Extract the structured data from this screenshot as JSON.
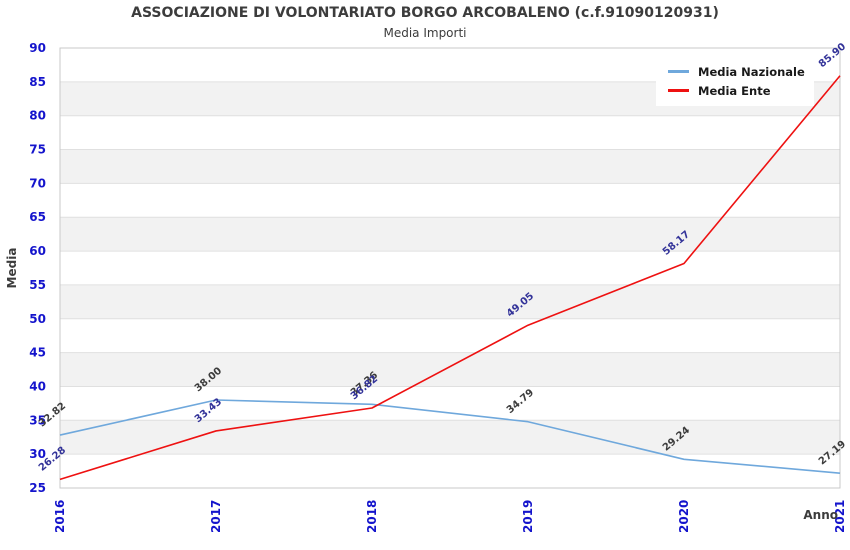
{
  "title": "ASSOCIAZIONE DI VOLONTARIATO BORGO ARCOBALENO (c.f.91090120931)",
  "subtitle": "Media Importi",
  "legend": {
    "items": [
      {
        "label": "Media Nazionale"
      },
      {
        "label": "Media Ente"
      }
    ]
  },
  "chart_data": {
    "type": "line",
    "title": "ASSOCIAZIONE DI VOLONTARIATO BORGO ARCOBALENO (c.f.91090120931)",
    "subtitle": "Media Importi",
    "xlabel": "Anno",
    "ylabel": "Media",
    "x": [
      "2016",
      "2017",
      "2018",
      "2019",
      "2020",
      "2021"
    ],
    "series": [
      {
        "name": "Media Nazionale",
        "color": "#6fa8dc",
        "label_color": "#3c3c3c",
        "values": [
          32.82,
          38.0,
          37.36,
          34.79,
          29.24,
          27.19
        ]
      },
      {
        "name": "Media Ente",
        "color": "#ee1111",
        "label_color": "#333399",
        "values": [
          26.28,
          33.43,
          36.82,
          49.05,
          58.17,
          85.9
        ]
      }
    ],
    "ylim": [
      25,
      90
    ],
    "ytick_step": 5,
    "tick_color": "#1414cc",
    "axis_text_color": "#3c3c3c",
    "band_colors": [
      "#ffffff",
      "#f2f2f2"
    ],
    "grid_color": "#e0e0e0",
    "border_color": "#c9c9c9",
    "grid": true,
    "legend_position": "upper-right",
    "value_label_rotation": -40,
    "value_label_decimals": 2
  }
}
